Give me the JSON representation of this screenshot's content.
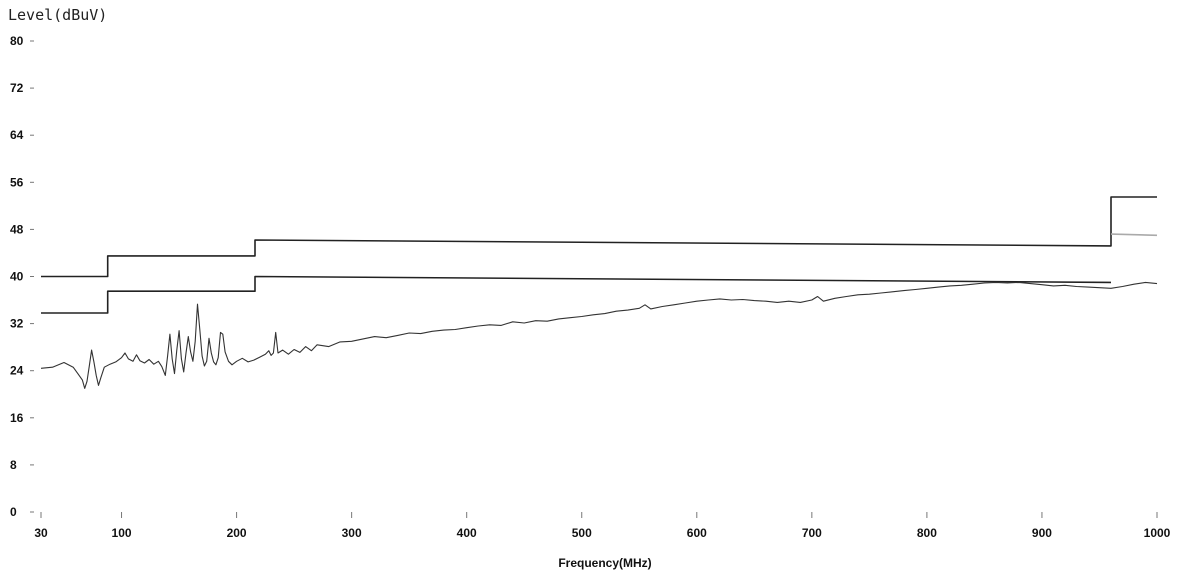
{
  "chart_data": {
    "type": "line",
    "ylabel": "Level(dBuV)",
    "xlabel": "Frequency(MHz)",
    "xlim": [
      30,
      1000
    ],
    "ylim": [
      0,
      80
    ],
    "x_ticks": [
      30,
      100,
      200,
      300,
      400,
      500,
      600,
      700,
      800,
      900,
      1000
    ],
    "x_tick_labels": [
      "30",
      "100",
      "200",
      "300",
      "400",
      "500",
      "600",
      "700",
      "800",
      "900",
      "1000"
    ],
    "y_ticks": [
      0,
      8,
      16,
      24,
      32,
      40,
      48,
      56,
      64,
      72,
      80
    ],
    "y_tick_labels": [
      "0",
      "8",
      "16",
      "24",
      "32",
      "40",
      "48",
      "56",
      "64",
      "72",
      "80"
    ],
    "grid": false,
    "series": [
      {
        "style": "step",
        "color": "#222222",
        "points": [
          [
            30,
            40
          ],
          [
            88,
            40
          ],
          [
            88,
            43.5
          ],
          [
            216,
            43.5
          ],
          [
            216,
            46.2
          ],
          [
            960,
            45.2
          ],
          [
            960,
            53.5
          ],
          [
            1000,
            53.5
          ]
        ]
      },
      {
        "style": "step",
        "color": "#222222",
        "points": [
          [
            30,
            33.8
          ],
          [
            88,
            33.8
          ],
          [
            88,
            37.5
          ],
          [
            216,
            37.5
          ],
          [
            216,
            40.0
          ],
          [
            960,
            39.0
          ],
          [
            960,
            39.0
          ]
        ]
      },
      {
        "style": "step",
        "color": "#aaaaaa",
        "points": [
          [
            960,
            47.2
          ],
          [
            1000,
            47.0
          ]
        ]
      },
      {
        "style": "line",
        "color": "#333333",
        "points": [
          [
            30,
            24.4
          ],
          [
            40,
            24.6
          ],
          [
            50,
            25.4
          ],
          [
            58,
            24.6
          ],
          [
            62,
            23.5
          ],
          [
            66,
            22.4
          ],
          [
            68,
            21.0
          ],
          [
            70,
            22.2
          ],
          [
            72,
            24.8
          ],
          [
            74,
            27.5
          ],
          [
            76,
            25.5
          ],
          [
            78,
            23.2
          ],
          [
            80,
            21.5
          ],
          [
            82,
            22.8
          ],
          [
            85,
            24.6
          ],
          [
            90,
            25.1
          ],
          [
            95,
            25.5
          ],
          [
            100,
            26.2
          ],
          [
            103,
            27.0
          ],
          [
            106,
            26.0
          ],
          [
            110,
            25.6
          ],
          [
            113,
            26.7
          ],
          [
            116,
            25.7
          ],
          [
            120,
            25.3
          ],
          [
            124,
            25.9
          ],
          [
            128,
            25.1
          ],
          [
            132,
            25.6
          ],
          [
            135,
            24.7
          ],
          [
            138,
            23.2
          ],
          [
            140,
            26.5
          ],
          [
            142,
            30.2
          ],
          [
            144,
            26.0
          ],
          [
            146,
            23.5
          ],
          [
            148,
            27.5
          ],
          [
            150,
            30.8
          ],
          [
            152,
            26.0
          ],
          [
            154,
            23.8
          ],
          [
            156,
            27.0
          ],
          [
            158,
            29.8
          ],
          [
            160,
            27.2
          ],
          [
            162,
            25.6
          ],
          [
            164,
            29.0
          ],
          [
            166,
            35.3
          ],
          [
            168,
            31.0
          ],
          [
            170,
            26.5
          ],
          [
            172,
            24.8
          ],
          [
            174,
            25.6
          ],
          [
            176,
            29.5
          ],
          [
            178,
            27.0
          ],
          [
            180,
            25.5
          ],
          [
            182,
            25.0
          ],
          [
            184,
            26.2
          ],
          [
            186,
            30.5
          ],
          [
            188,
            30.2
          ],
          [
            190,
            27.2
          ],
          [
            193,
            25.6
          ],
          [
            196,
            25.0
          ],
          [
            200,
            25.6
          ],
          [
            205,
            26.1
          ],
          [
            210,
            25.5
          ],
          [
            215,
            25.8
          ],
          [
            220,
            26.3
          ],
          [
            225,
            26.8
          ],
          [
            228,
            27.4
          ],
          [
            230,
            26.6
          ],
          [
            232,
            27.0
          ],
          [
            234,
            30.5
          ],
          [
            236,
            27.0
          ],
          [
            240,
            27.5
          ],
          [
            245,
            26.8
          ],
          [
            250,
            27.6
          ],
          [
            255,
            27.1
          ],
          [
            260,
            28.1
          ],
          [
            265,
            27.4
          ],
          [
            270,
            28.4
          ],
          [
            280,
            28.1
          ],
          [
            290,
            28.9
          ],
          [
            300,
            29.0
          ],
          [
            310,
            29.4
          ],
          [
            320,
            29.8
          ],
          [
            330,
            29.6
          ],
          [
            340,
            30.0
          ],
          [
            350,
            30.4
          ],
          [
            360,
            30.3
          ],
          [
            370,
            30.7
          ],
          [
            380,
            30.9
          ],
          [
            390,
            31.0
          ],
          [
            400,
            31.3
          ],
          [
            410,
            31.6
          ],
          [
            420,
            31.8
          ],
          [
            430,
            31.7
          ],
          [
            440,
            32.3
          ],
          [
            450,
            32.1
          ],
          [
            460,
            32.5
          ],
          [
            470,
            32.4
          ],
          [
            480,
            32.8
          ],
          [
            490,
            33.0
          ],
          [
            500,
            33.2
          ],
          [
            510,
            33.5
          ],
          [
            520,
            33.7
          ],
          [
            530,
            34.1
          ],
          [
            540,
            34.3
          ],
          [
            550,
            34.6
          ],
          [
            555,
            35.2
          ],
          [
            560,
            34.5
          ],
          [
            570,
            34.9
          ],
          [
            580,
            35.2
          ],
          [
            590,
            35.5
          ],
          [
            600,
            35.8
          ],
          [
            610,
            36.0
          ],
          [
            620,
            36.2
          ],
          [
            630,
            36.0
          ],
          [
            640,
            36.1
          ],
          [
            650,
            35.9
          ],
          [
            660,
            35.8
          ],
          [
            670,
            35.6
          ],
          [
            680,
            35.8
          ],
          [
            690,
            35.6
          ],
          [
            700,
            36.0
          ],
          [
            705,
            36.6
          ],
          [
            710,
            35.8
          ],
          [
            720,
            36.3
          ],
          [
            730,
            36.6
          ],
          [
            740,
            36.9
          ],
          [
            750,
            37.0
          ],
          [
            760,
            37.2
          ],
          [
            770,
            37.4
          ],
          [
            780,
            37.6
          ],
          [
            790,
            37.8
          ],
          [
            800,
            38.0
          ],
          [
            810,
            38.2
          ],
          [
            820,
            38.4
          ],
          [
            830,
            38.5
          ],
          [
            840,
            38.7
          ],
          [
            850,
            38.9
          ],
          [
            860,
            39.0
          ],
          [
            870,
            38.9
          ],
          [
            880,
            39.0
          ],
          [
            890,
            38.8
          ],
          [
            900,
            38.6
          ],
          [
            910,
            38.4
          ],
          [
            920,
            38.5
          ],
          [
            930,
            38.3
          ],
          [
            940,
            38.2
          ],
          [
            950,
            38.1
          ],
          [
            960,
            38.0
          ],
          [
            970,
            38.3
          ],
          [
            980,
            38.7
          ],
          [
            990,
            39.0
          ],
          [
            1000,
            38.8
          ]
        ]
      }
    ]
  }
}
